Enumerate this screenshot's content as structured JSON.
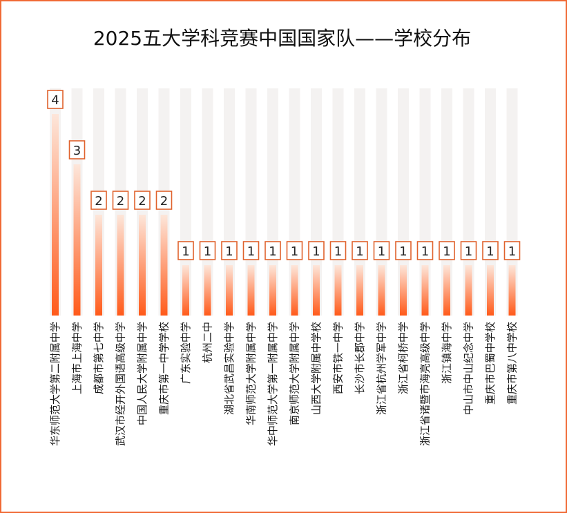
{
  "chart_data": {
    "type": "bar",
    "title": "2025五大学科竞赛中国国家队——学校分布",
    "categories": [
      "华东师范大学第二附属中学",
      "上海市上海中学",
      "成都市第七中学",
      "武汉市经开外国语高级中学",
      "中国人民大学附属中学",
      "重庆市第一中学学校",
      "广东实验中学",
      "杭州二中",
      "湖北省武昌实验中学",
      "华南师范大学附属中学",
      "华中师范大学第一附属中学",
      "南京师范大学附属中学",
      "山西大学附属中学校",
      "西安市铁一中学",
      "长沙市长郡中学",
      "浙江省杭州学军中学",
      "浙江省柯桥中学",
      "浙江省诸暨市海亮高级中学",
      "浙江镇海中学",
      "中山市中山纪念中学",
      "重庆市巴蜀中学校",
      "重庆市第八中学校"
    ],
    "values": [
      4,
      3,
      2,
      2,
      2,
      2,
      1,
      1,
      1,
      1,
      1,
      1,
      1,
      1,
      1,
      1,
      1,
      1,
      1,
      1,
      1,
      1
    ],
    "ylim": [
      0,
      4
    ],
    "data_labels": true,
    "grid": false,
    "colors": {
      "bar_top": "#fde6da",
      "bar_bottom": "#ff5a1a",
      "label_border": "#e0622c",
      "frame": "#f06a35"
    }
  }
}
